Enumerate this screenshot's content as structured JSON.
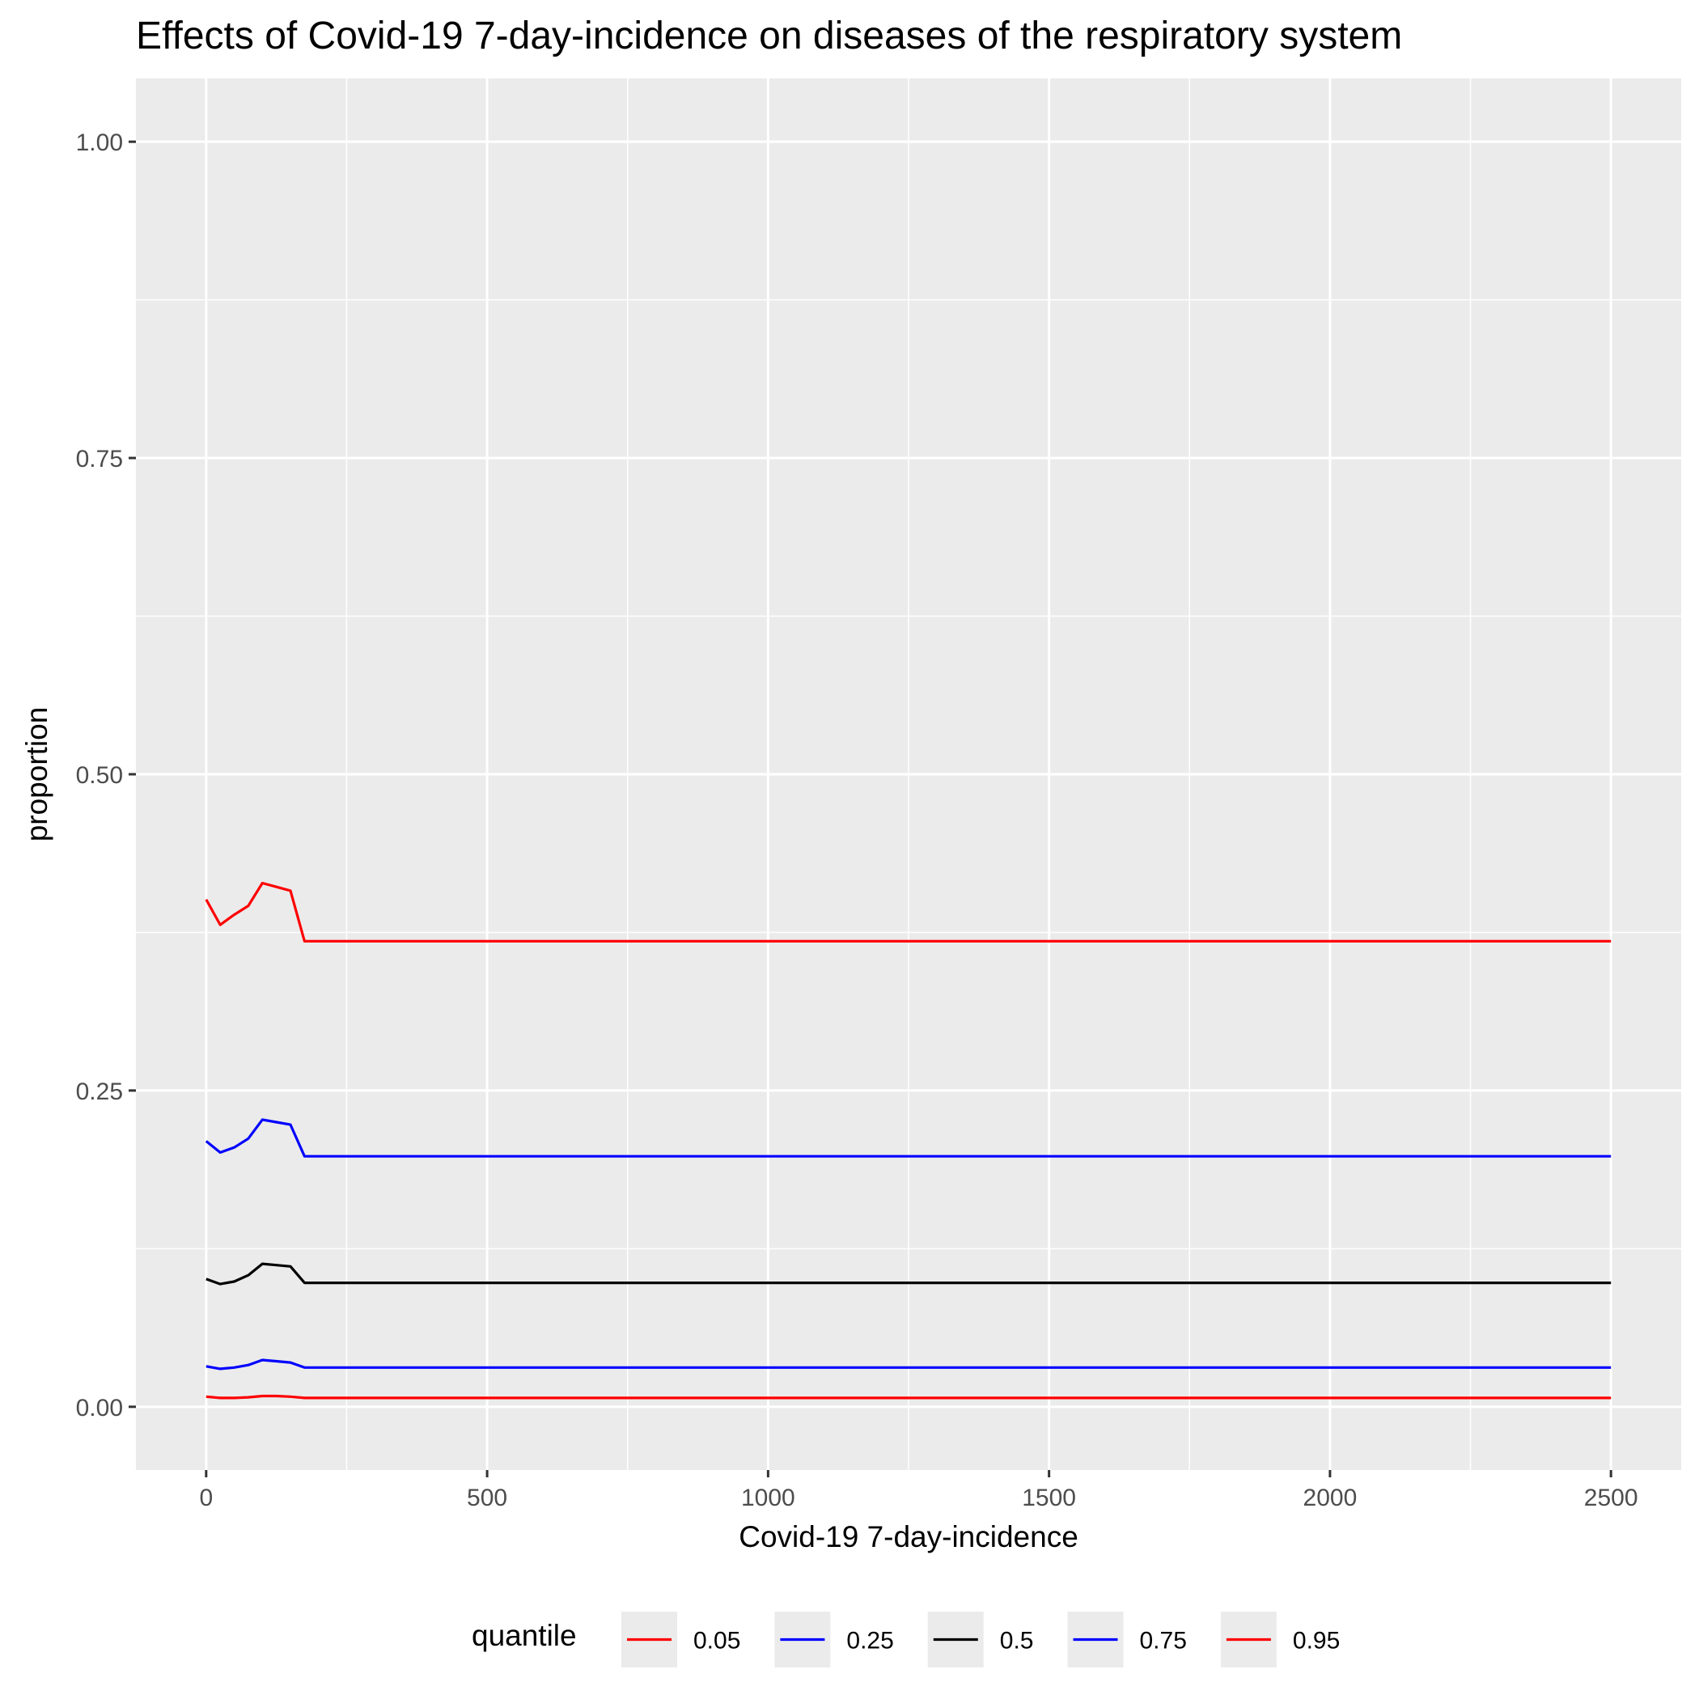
{
  "chart_data": {
    "type": "line",
    "title": "Effects of Covid-19 7-day-incidence on diseases of the respiratory system",
    "xlabel": "Covid-19 7-day-incidence",
    "ylabel": "proportion",
    "xlim": [
      -125,
      2625
    ],
    "ylim": [
      -0.05,
      1.05
    ],
    "x_ticks": [
      0,
      500,
      1000,
      1500,
      2000,
      2500
    ],
    "x_tick_labels": [
      "0",
      "500",
      "1000",
      "1500",
      "2000",
      "2500"
    ],
    "y_ticks": [
      0,
      0.25,
      0.5,
      0.75,
      1
    ],
    "y_tick_labels": [
      "0.00",
      "0.25",
      "0.50",
      "0.75",
      "1.00"
    ],
    "grid": true,
    "background": "#ebebeb",
    "legend": {
      "title": "quantile",
      "position": "bottom"
    },
    "x": [
      0,
      25,
      50,
      75,
      100,
      125,
      150,
      175,
      2500
    ],
    "series": [
      {
        "name": "0.05",
        "color": "#ff0000",
        "values": [
          0.008,
          0.007,
          0.007,
          0.0075,
          0.0085,
          0.0085,
          0.008,
          0.007,
          0.007
        ]
      },
      {
        "name": "0.25",
        "color": "#0000ff",
        "values": [
          0.032,
          0.03,
          0.031,
          0.033,
          0.037,
          0.036,
          0.035,
          0.031,
          0.031
        ]
      },
      {
        "name": "0.5",
        "color": "#000000",
        "values": [
          0.101,
          0.097,
          0.099,
          0.104,
          0.113,
          0.112,
          0.111,
          0.098,
          0.098
        ]
      },
      {
        "name": "0.75",
        "color": "#0000ff",
        "values": [
          0.21,
          0.201,
          0.205,
          0.212,
          0.227,
          0.225,
          0.223,
          0.198,
          0.198
        ]
      },
      {
        "name": "0.95",
        "color": "#ff0000",
        "values": [
          0.401,
          0.381,
          0.389,
          0.396,
          0.414,
          0.411,
          0.408,
          0.368,
          0.368
        ]
      }
    ]
  }
}
